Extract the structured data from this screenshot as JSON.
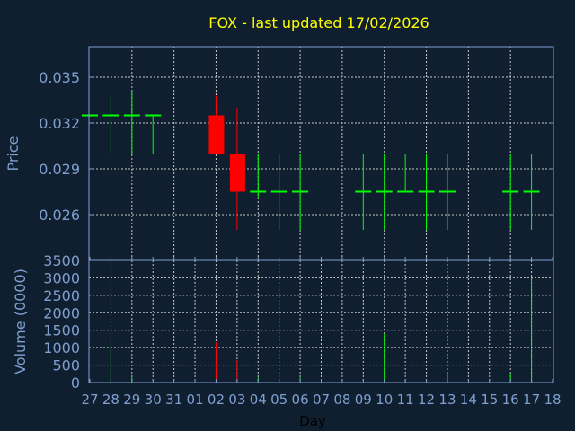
{
  "chart_data": [
    {
      "type": "candlestick",
      "title": "FOX - last updated 17/02/2026",
      "xlabel": "",
      "ylabel": "Price",
      "ylim": [
        0.023,
        0.037
      ],
      "yticks": [
        "0.035",
        "0.032",
        "0.029",
        "0.026"
      ],
      "ytick_values": [
        0.035,
        0.032,
        0.029,
        0.026
      ],
      "grid": true,
      "colors": {
        "up": "#00ff00",
        "down": "#ff0000",
        "title": "#ffff00",
        "axis": "#7f9fcf",
        "background": "#0f1f30"
      },
      "candles": [
        {
          "day": "27",
          "open": 0.0325,
          "high": 0.0325,
          "low": 0.0325,
          "close": 0.0325
        },
        {
          "day": "28",
          "open": 0.0325,
          "high": 0.0338,
          "low": 0.03,
          "close": 0.0325
        },
        {
          "day": "29",
          "open": 0.0325,
          "high": 0.034,
          "low": 0.03,
          "close": 0.0325
        },
        {
          "day": "30",
          "open": 0.0325,
          "high": 0.0325,
          "low": 0.03,
          "close": 0.0325
        },
        {
          "day": "02",
          "open": 0.0325,
          "high": 0.0338,
          "low": 0.03,
          "close": 0.03
        },
        {
          "day": "03",
          "open": 0.03,
          "high": 0.033,
          "low": 0.025,
          "close": 0.0275
        },
        {
          "day": "04",
          "open": 0.0275,
          "high": 0.03,
          "low": 0.0271,
          "close": 0.0275
        },
        {
          "day": "05",
          "open": 0.0275,
          "high": 0.03,
          "low": 0.025,
          "close": 0.0275
        },
        {
          "day": "06",
          "open": 0.0275,
          "high": 0.03,
          "low": 0.025,
          "close": 0.0275
        },
        {
          "day": "09",
          "open": 0.0275,
          "high": 0.03,
          "low": 0.025,
          "close": 0.0275
        },
        {
          "day": "10",
          "open": 0.0275,
          "high": 0.03,
          "low": 0.025,
          "close": 0.0275
        },
        {
          "day": "11",
          "open": 0.0275,
          "high": 0.03,
          "low": 0.0275,
          "close": 0.0275
        },
        {
          "day": "12",
          "open": 0.0275,
          "high": 0.03,
          "low": 0.025,
          "close": 0.0275
        },
        {
          "day": "13",
          "open": 0.0275,
          "high": 0.03,
          "low": 0.025,
          "close": 0.0275
        },
        {
          "day": "16",
          "open": 0.0275,
          "high": 0.03,
          "low": 0.025,
          "close": 0.0275
        },
        {
          "day": "17",
          "open": 0.0275,
          "high": 0.03,
          "low": 0.025,
          "close": 0.0275
        }
      ]
    },
    {
      "type": "bar",
      "xlabel": "Day",
      "ylabel": "Volume (0000)",
      "ylim": [
        0,
        3500
      ],
      "yticks": [
        "0",
        "500",
        "1000",
        "1500",
        "2000",
        "2500",
        "3000",
        "3500"
      ],
      "ytick_values": [
        0,
        500,
        1000,
        1500,
        2000,
        2500,
        3000,
        3500
      ],
      "categories": [
        "27",
        "28",
        "29",
        "30",
        "31",
        "01",
        "02",
        "03",
        "04",
        "05",
        "06",
        "07",
        "08",
        "09",
        "10",
        "11",
        "12",
        "13",
        "14",
        "15",
        "16",
        "17",
        "18"
      ],
      "bars": [
        {
          "day": "28",
          "value": 1050,
          "dir": "up"
        },
        {
          "day": "29",
          "value": 150,
          "dir": "up"
        },
        {
          "day": "02",
          "value": 1150,
          "dir": "down"
        },
        {
          "day": "03",
          "value": 650,
          "dir": "down"
        },
        {
          "day": "04",
          "value": 150,
          "dir": "up"
        },
        {
          "day": "06",
          "value": 150,
          "dir": "up"
        },
        {
          "day": "10",
          "value": 1400,
          "dir": "up"
        },
        {
          "day": "11",
          "value": 50,
          "dir": "up"
        },
        {
          "day": "12",
          "value": 50,
          "dir": "up"
        },
        {
          "day": "13",
          "value": 250,
          "dir": "up"
        },
        {
          "day": "16",
          "value": 250,
          "dir": "up"
        },
        {
          "day": "17",
          "value": 3000,
          "dir": "up"
        }
      ]
    }
  ]
}
